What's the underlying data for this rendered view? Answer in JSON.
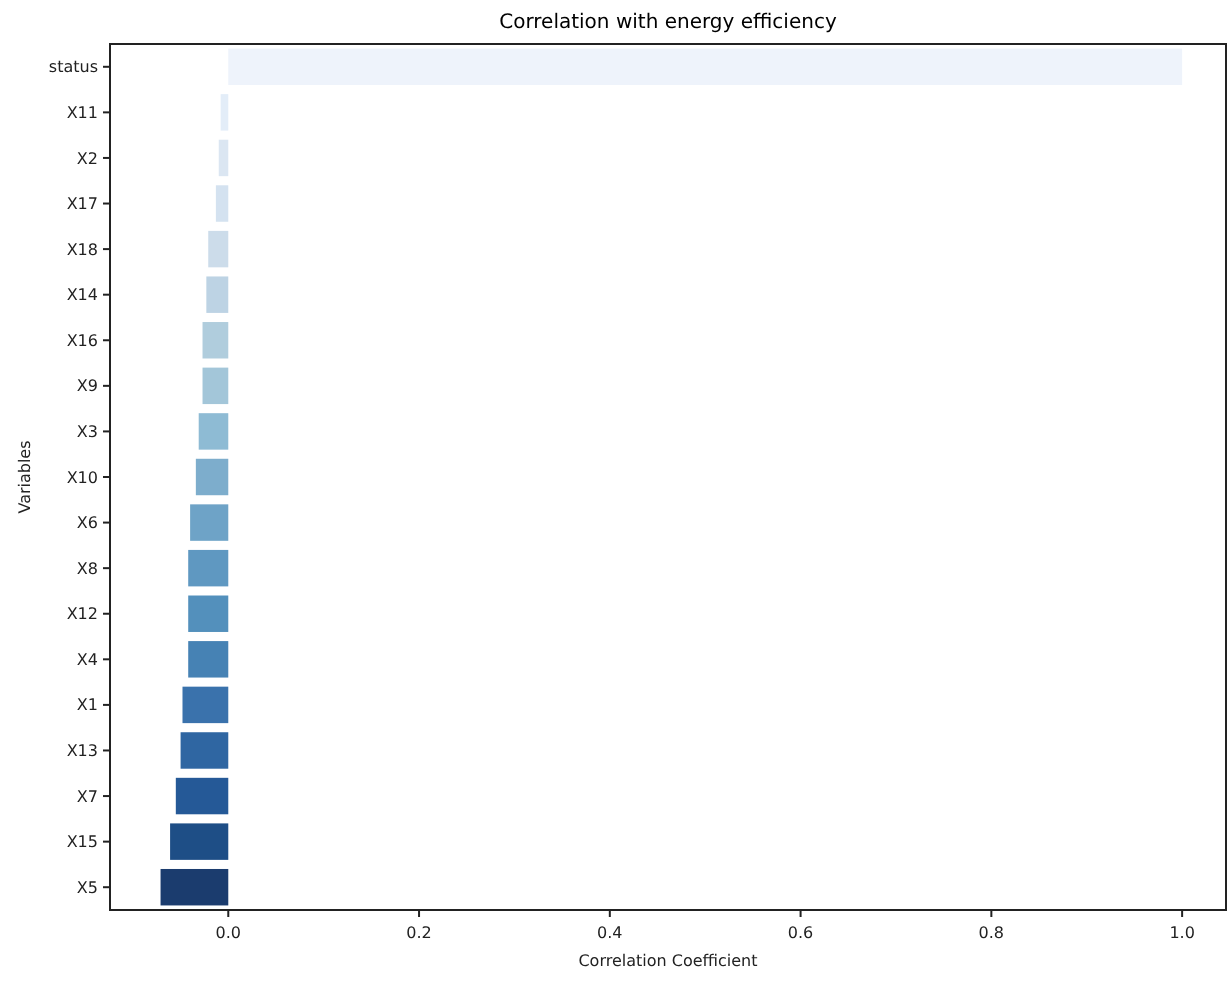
{
  "chart_data": {
    "type": "bar",
    "orientation": "horizontal",
    "title": "Correlation with energy efficiency",
    "xlabel": "Correlation Coefficient",
    "ylabel": "Variables",
    "categories": [
      "status",
      "X11",
      "X2",
      "X17",
      "X18",
      "X14",
      "X16",
      "X9",
      "X3",
      "X10",
      "X6",
      "X8",
      "X12",
      "X4",
      "X1",
      "X13",
      "X7",
      "X15",
      "X5"
    ],
    "values": [
      1.0,
      -0.008,
      -0.01,
      -0.013,
      -0.021,
      -0.023,
      -0.027,
      -0.027,
      -0.031,
      -0.034,
      -0.04,
      -0.042,
      -0.042,
      -0.042,
      -0.048,
      -0.05,
      -0.055,
      -0.061,
      -0.071
    ],
    "colors": [
      "#eef3fb",
      "#e3edf8",
      "#dbe6f2",
      "#d4e2f0",
      "#ccdcea",
      "#bdd3e4",
      "#b0cddd",
      "#a3c6d9",
      "#8ebbd4",
      "#7dadcc",
      "#6ea3c7",
      "#5f98c1",
      "#5390bc",
      "#4682b4",
      "#3a72ac",
      "#2f66a2",
      "#255997",
      "#1e4e86",
      "#1b3c6e"
    ],
    "xlim": [
      -0.124,
      1.046
    ],
    "xticks": [
      {
        "value": 0,
        "label": "0.0"
      },
      0.2,
      0.4,
      0.6,
      0.8,
      {
        "value": 1,
        "label": "1.0"
      }
    ],
    "grid": false
  }
}
